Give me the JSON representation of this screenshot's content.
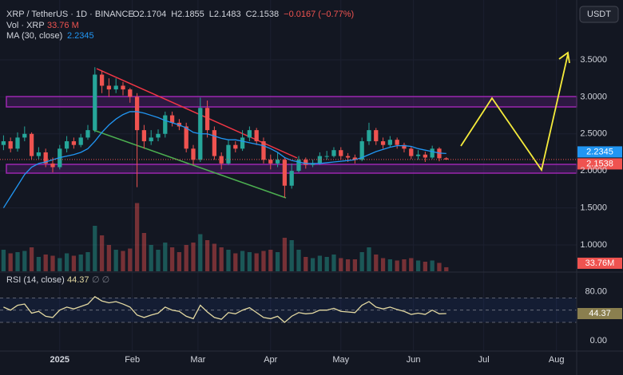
{
  "chart_data": {
    "type": "candlestick",
    "symbol": "XRP / TetherUS · 1D · BINANCE",
    "header_values": [
      "O2.1704",
      "H2.1855",
      "L2.1483",
      "C2.1538",
      "−0.0167 (−0.77%)"
    ],
    "volume_title": "Vol · XRP",
    "volume_header": "33.76 M",
    "volume_badge": "33.76M",
    "ma_title": "MA (30, close)",
    "rsi_title": "RSI (14, close)",
    "rsi_marks": "∅ ∅",
    "currency_button": "USDT",
    "up_color": "#26a69a",
    "down_color": "#ef5350",
    "ma_color": "#2196f3",
    "rsi_color": "#e3d9a2",
    "open": [
      2.35,
      2.4,
      2.3,
      2.45,
      2.5,
      2.2,
      2.25,
      2.1,
      2.05,
      2.3,
      2.4,
      2.35,
      2.45,
      2.55,
      3.3,
      3.15,
      3.1,
      3.15,
      3.1,
      3.0,
      2.55,
      2.4,
      2.45,
      2.5,
      2.75,
      2.65,
      2.6,
      2.3,
      2.15,
      2.85,
      2.55,
      2.2,
      2.1,
      2.35,
      2.3,
      2.45,
      2.55,
      2.4,
      2.15,
      2.1,
      2.15,
      1.8,
      2.0,
      2.15,
      2.08,
      2.1,
      2.2,
      2.2,
      2.28,
      2.2,
      2.18,
      2.15,
      2.4,
      2.55,
      2.4,
      2.35,
      2.42,
      2.35,
      2.3,
      2.2,
      2.22,
      2.18,
      2.3,
      2.1704
    ],
    "high": [
      2.48,
      2.45,
      2.52,
      2.6,
      2.52,
      2.32,
      2.3,
      2.18,
      2.35,
      2.47,
      2.45,
      2.5,
      2.62,
      3.4,
      3.35,
      3.25,
      3.25,
      3.2,
      3.12,
      3.05,
      2.62,
      2.55,
      2.56,
      2.8,
      2.8,
      2.7,
      2.65,
      2.35,
      2.99,
      2.95,
      2.6,
      2.25,
      2.42,
      2.4,
      2.55,
      2.6,
      2.58,
      2.45,
      2.22,
      2.25,
      2.18,
      2.1,
      2.2,
      2.18,
      2.15,
      2.25,
      2.27,
      2.32,
      2.32,
      2.24,
      2.22,
      2.45,
      2.65,
      2.58,
      2.45,
      2.47,
      2.45,
      2.38,
      2.33,
      2.28,
      2.26,
      2.34,
      2.32,
      2.1855
    ],
    "low": [
      2.28,
      2.25,
      2.26,
      2.4,
      2.15,
      2.16,
      2.05,
      1.98,
      2.02,
      2.25,
      2.3,
      2.32,
      2.42,
      2.52,
      3.05,
      3.0,
      3.05,
      3.02,
      2.92,
      1.78,
      2.3,
      2.35,
      2.4,
      2.45,
      2.6,
      2.55,
      2.25,
      2.08,
      2.12,
      2.45,
      2.15,
      2.02,
      2.08,
      2.25,
      2.27,
      2.4,
      2.35,
      2.1,
      2.02,
      2.05,
      1.64,
      1.76,
      1.98,
      2.03,
      2.05,
      2.08,
      2.15,
      2.18,
      2.15,
      2.12,
      2.1,
      2.13,
      2.35,
      2.35,
      2.3,
      2.32,
      2.3,
      2.25,
      2.16,
      2.15,
      2.12,
      2.16,
      2.13,
      2.1483
    ],
    "close": [
      2.4,
      2.3,
      2.45,
      2.5,
      2.2,
      2.25,
      2.1,
      2.05,
      2.3,
      2.4,
      2.35,
      2.45,
      2.55,
      3.3,
      3.15,
      3.1,
      3.15,
      3.1,
      3.0,
      2.55,
      2.4,
      2.45,
      2.5,
      2.75,
      2.65,
      2.6,
      2.3,
      2.15,
      2.85,
      2.55,
      2.2,
      2.1,
      2.35,
      2.3,
      2.45,
      2.55,
      2.4,
      2.15,
      2.1,
      2.15,
      1.8,
      2.0,
      2.15,
      2.08,
      2.1,
      2.2,
      2.2,
      2.28,
      2.2,
      2.18,
      2.15,
      2.4,
      2.55,
      2.4,
      2.35,
      2.42,
      2.35,
      2.3,
      2.2,
      2.22,
      2.18,
      2.3,
      2.1704,
      2.1538
    ],
    "volume": [
      180,
      150,
      160,
      170,
      200,
      120,
      140,
      130,
      110,
      150,
      130,
      140,
      160,
      380,
      300,
      220,
      180,
      170,
      190,
      570,
      320,
      220,
      180,
      240,
      200,
      160,
      220,
      240,
      310,
      260,
      230,
      200,
      180,
      150,
      170,
      160,
      150,
      170,
      180,
      160,
      280,
      260,
      180,
      120,
      110,
      130,
      120,
      140,
      110,
      100,
      100,
      160,
      200,
      140,
      110,
      100,
      90,
      100,
      110,
      90,
      80,
      90,
      70,
      33.76
    ],
    "ma": [
      1.5,
      1.65,
      1.8,
      1.95,
      2.05,
      2.1,
      2.12,
      2.15,
      2.18,
      2.2,
      2.22,
      2.25,
      2.3,
      2.4,
      2.52,
      2.62,
      2.7,
      2.76,
      2.8,
      2.8,
      2.78,
      2.75,
      2.72,
      2.68,
      2.65,
      2.62,
      2.58,
      2.52,
      2.5,
      2.5,
      2.47,
      2.44,
      2.42,
      2.42,
      2.4,
      2.38,
      2.36,
      2.34,
      2.3,
      2.25,
      2.18,
      2.14,
      2.12,
      2.1,
      2.1,
      2.1,
      2.11,
      2.12,
      2.13,
      2.14,
      2.15,
      2.18,
      2.22,
      2.26,
      2.29,
      2.32,
      2.34,
      2.34,
      2.33,
      2.3,
      2.28,
      2.26,
      2.24,
      2.2345
    ],
    "rsi": [
      55,
      50,
      58,
      60,
      45,
      48,
      40,
      38,
      50,
      55,
      52,
      56,
      60,
      72,
      65,
      62,
      64,
      60,
      55,
      42,
      38,
      42,
      45,
      55,
      50,
      48,
      40,
      36,
      58,
      47,
      38,
      35,
      46,
      44,
      50,
      54,
      46,
      38,
      36,
      40,
      30,
      40,
      46,
      44,
      45,
      50,
      50,
      53,
      48,
      47,
      46,
      58,
      64,
      55,
      52,
      55,
      51,
      48,
      43,
      45,
      43,
      50,
      44,
      44.37
    ],
    "xlim": [
      -0.5,
      81.55
    ],
    "xticks": [
      {
        "value": 8,
        "label": "2025"
      },
      {
        "value": 18.33,
        "label": "Feb"
      },
      {
        "value": 27.67,
        "label": "Mar"
      },
      {
        "value": 38,
        "label": "Apr"
      },
      {
        "value": 48,
        "label": "May"
      },
      {
        "value": 58.33,
        "label": "Jun"
      },
      {
        "value": 68.33,
        "label": "Jul"
      },
      {
        "value": 78.67,
        "label": "Aug"
      }
    ],
    "ylim": [
      0.644,
      4.2
    ],
    "yticks": [
      {
        "value": 1,
        "label": "1.0000"
      },
      {
        "value": 1.5,
        "label": "1.5000"
      },
      {
        "value": 2,
        "label": "2.0000"
      },
      {
        "value": 2.5,
        "label": "2.5000"
      },
      {
        "value": 3,
        "label": "3.0000"
      },
      {
        "value": 3.5,
        "label": "3.5000"
      }
    ],
    "vlim": [
      0,
      600
    ],
    "rsi_ylim": [
      -17,
      111
    ],
    "rsi_yticks": [
      {
        "value": 0,
        "label": "0.00"
      },
      {
        "value": 80,
        "label": "80.00"
      }
    ],
    "rsi_bands": [
      30,
      50,
      70
    ],
    "grid": true
  }
}
